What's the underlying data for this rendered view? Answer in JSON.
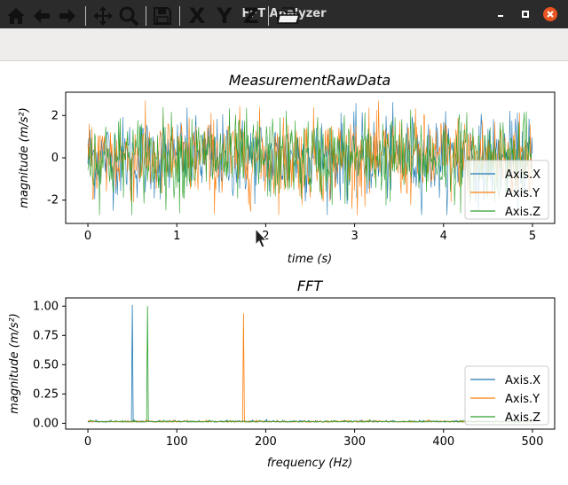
{
  "window": {
    "title": "FFT Analyzer",
    "minimize_icon": "minimize-icon",
    "maximize_icon": "maximize-icon",
    "close_icon": "close-icon"
  },
  "toolbar": {
    "items": [
      {
        "name": "home",
        "icon": "home-icon"
      },
      {
        "name": "back",
        "icon": "arrow-left-icon"
      },
      {
        "name": "forward",
        "icon": "arrow-right-icon"
      },
      {
        "name": "pan",
        "icon": "move-icon"
      },
      {
        "name": "zoom",
        "icon": "magnifier-icon"
      },
      {
        "name": "save",
        "icon": "floppy-disk-icon"
      },
      {
        "name": "axis-x",
        "label": "X"
      },
      {
        "name": "axis-y",
        "label": "Y"
      },
      {
        "name": "axis-z",
        "label": "Z"
      },
      {
        "name": "open",
        "icon": "open-folder-icon"
      }
    ]
  },
  "colors": {
    "x": "#1f77b4",
    "y": "#ff7f0e",
    "z": "#2ca02c"
  },
  "chart_data": [
    {
      "type": "line",
      "title": "MeasurementRawData",
      "xlabel": "time (s)",
      "ylabel": "magnitude (m/s²)",
      "xlim": [
        -0.25,
        5.25
      ],
      "ylim": [
        -3.1,
        3.1
      ],
      "xticks": [
        0,
        1,
        2,
        3,
        4,
        5
      ],
      "yticks": [
        -2,
        0,
        2
      ],
      "series": [
        {
          "name": "Axis.X",
          "description": "random noise, amplitude about ±2.5"
        },
        {
          "name": "Axis.Y",
          "description": "random noise, amplitude about ±2.7"
        },
        {
          "name": "Axis.Z",
          "description": "random noise, amplitude about ±2.6"
        }
      ],
      "legend": "right"
    },
    {
      "type": "line",
      "title": "FFT",
      "xlabel": "frequency (Hz)",
      "ylabel": "magnitude (m/s²)",
      "xlim": [
        -25,
        525
      ],
      "ylim": [
        -0.05,
        1.07
      ],
      "xticks": [
        0,
        100,
        200,
        300,
        400,
        500
      ],
      "yticks": [
        0.0,
        0.25,
        0.5,
        0.75,
        1.0
      ],
      "series": [
        {
          "name": "Axis.X",
          "peak": {
            "x": 50,
            "y": 1.01
          },
          "noise_floor": 0.01
        },
        {
          "name": "Axis.Y",
          "peak": {
            "x": 175,
            "y": 0.94
          },
          "noise_floor": 0.01
        },
        {
          "name": "Axis.Z",
          "peak": {
            "x": 67,
            "y": 1.0
          },
          "noise_floor": 0.01
        }
      ],
      "legend": "lower-right"
    }
  ]
}
